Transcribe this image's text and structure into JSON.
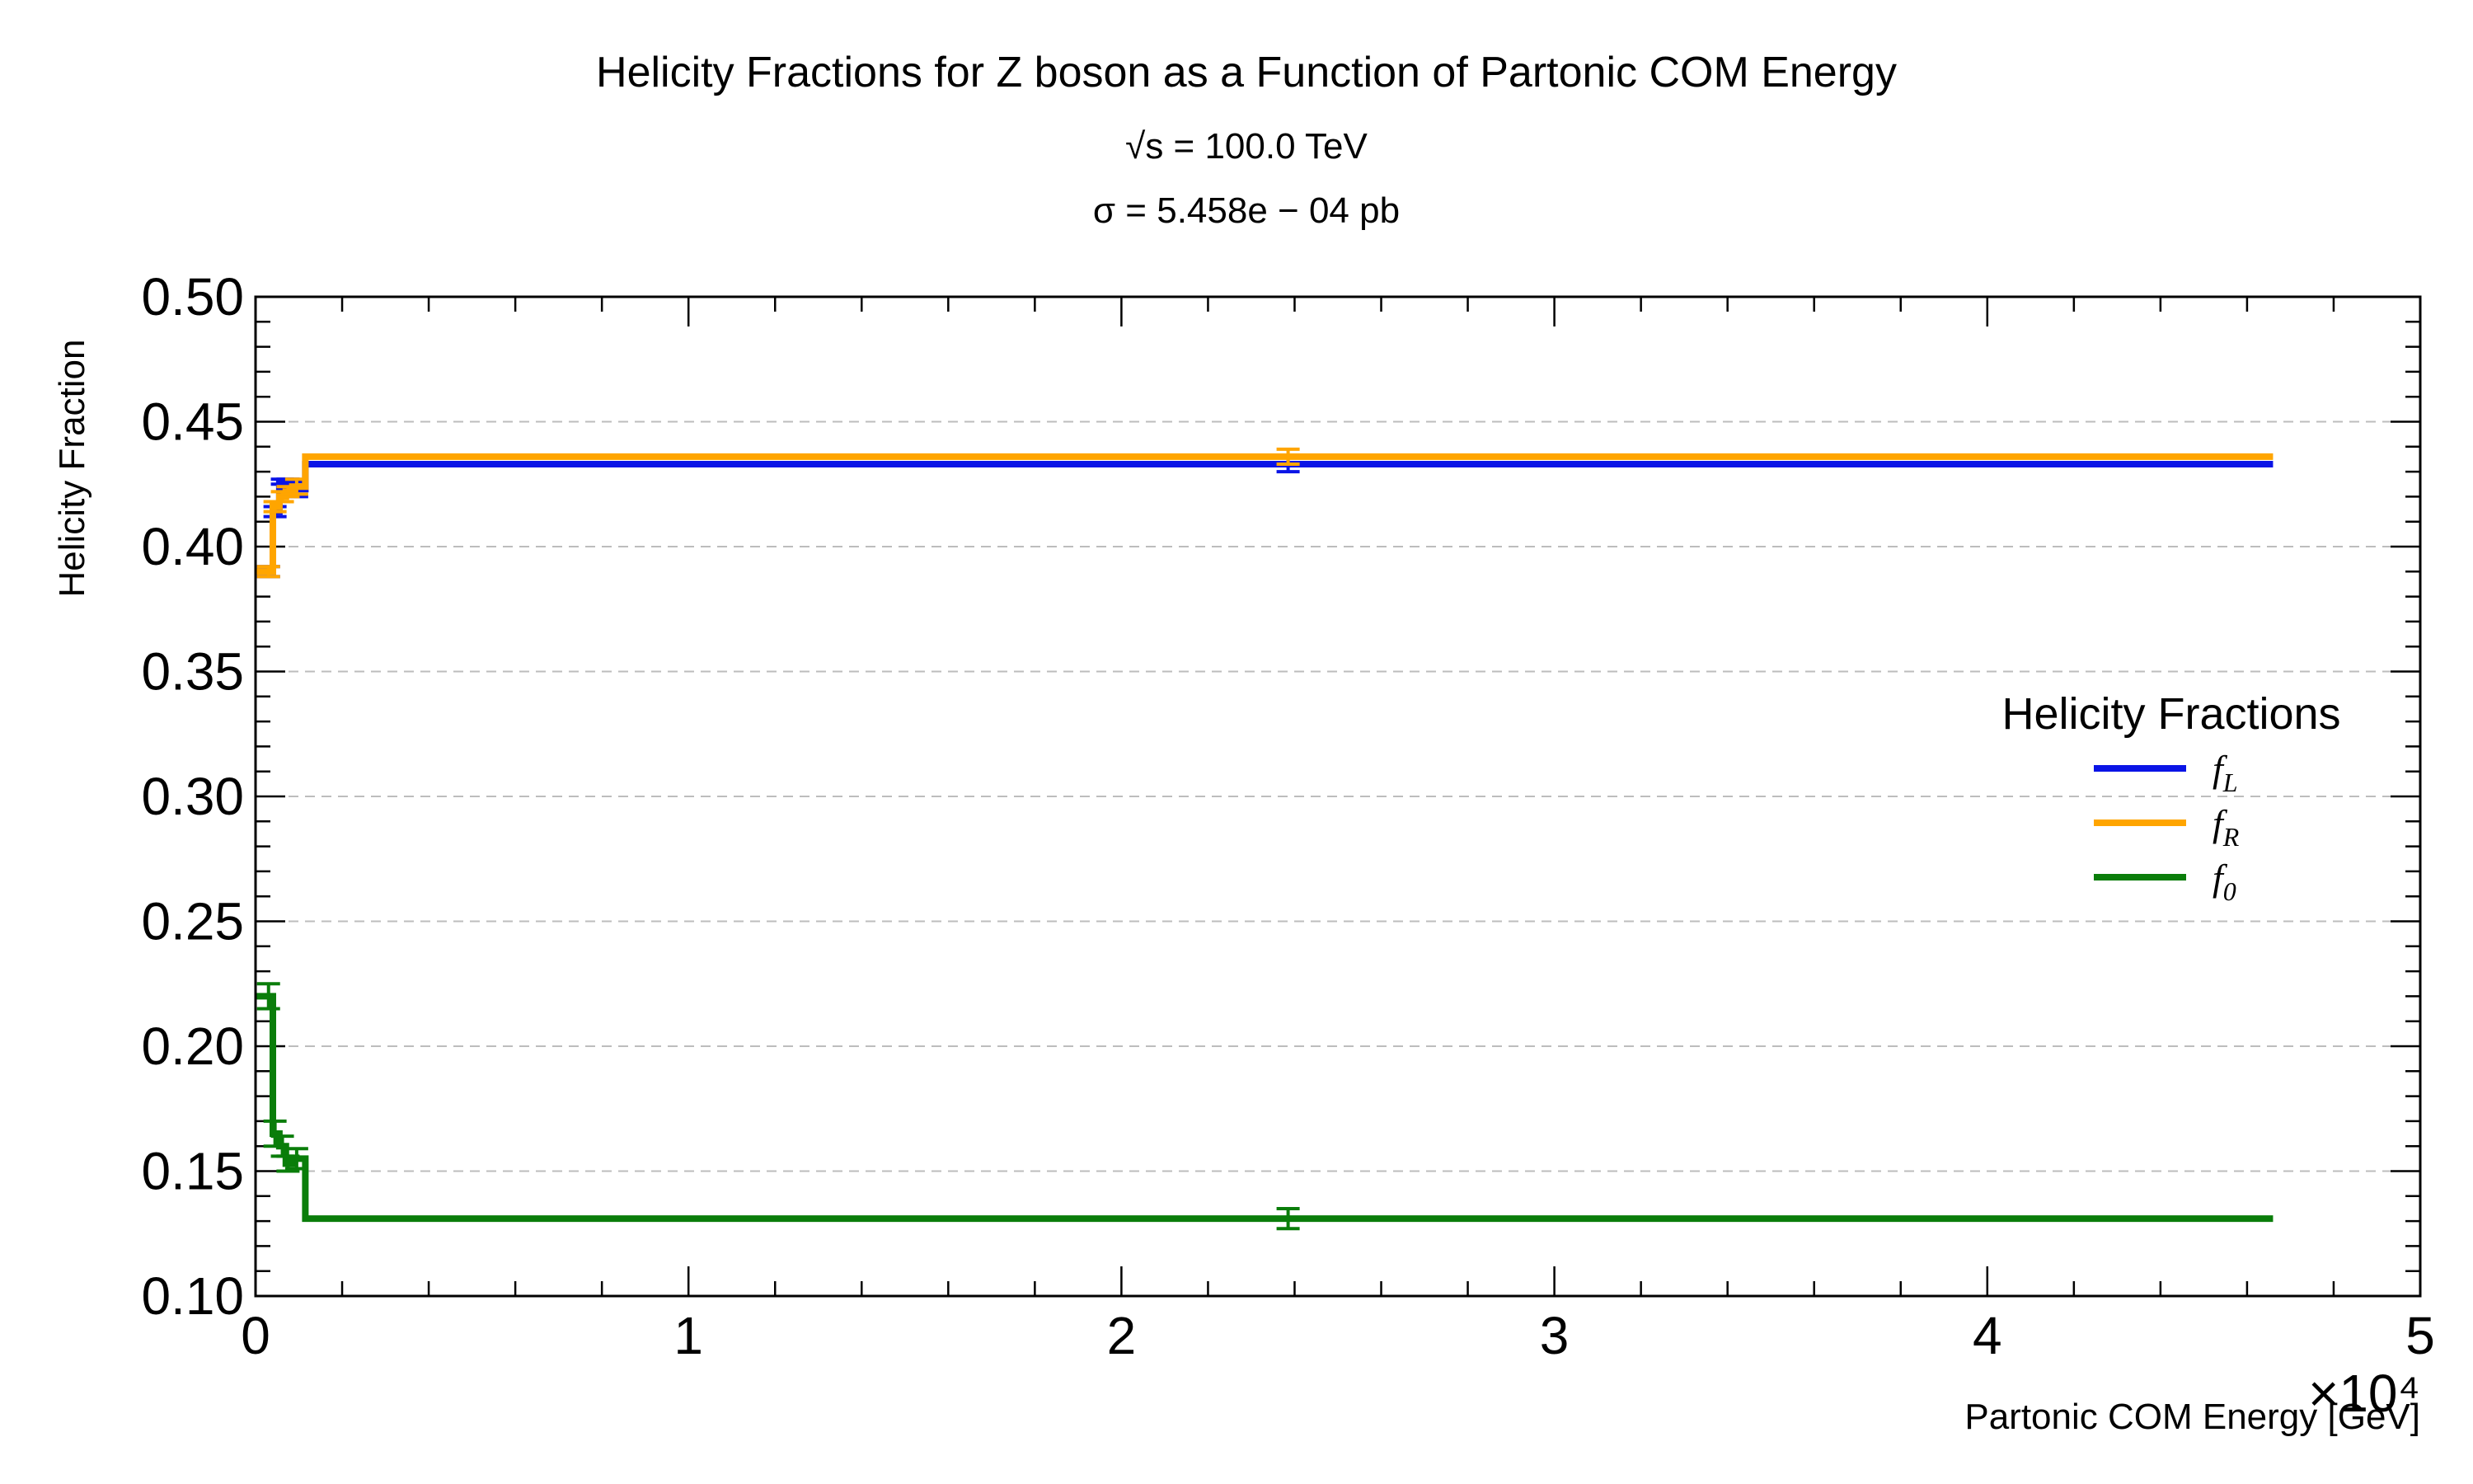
{
  "chart_data": {
    "type": "line",
    "step": true,
    "title": "Helicity Fractions for Z boson as a Function of Partonic COM Energy",
    "subtitles": [
      "√s = 100.0 TeV",
      "σ = 5.458e − 04 pb"
    ],
    "xlabel": "Partonic COM Energy [GeV]",
    "ylabel": "Helicity Fraction",
    "x_offset_label": "×10⁴",
    "xlim": [
      0,
      50000
    ],
    "ylim": [
      0.1,
      0.5
    ],
    "x_ticks": [
      0,
      10000,
      20000,
      30000,
      40000,
      50000
    ],
    "x_tick_labels": [
      "0",
      "1",
      "2",
      "3",
      "4",
      "5"
    ],
    "y_ticks": [
      0.1,
      0.15,
      0.2,
      0.25,
      0.3,
      0.35,
      0.4,
      0.45,
      0.5
    ],
    "y_tick_labels": [
      "0.10",
      "0.15",
      "0.20",
      "0.25",
      "0.30",
      "0.35",
      "0.40",
      "0.45",
      "0.50"
    ],
    "grid": "horizontal",
    "legend_title": "Helicity Fractions",
    "legend_placement": "center-right",
    "bin_edges": [
      0,
      400,
      550,
      700,
      850,
      1150,
      46600
    ],
    "series": [
      {
        "name": "f_L",
        "legend_main": "f",
        "legend_sub": "L",
        "color": "#0a14e6",
        "values": [
          0.39,
          0.414,
          0.426,
          0.425,
          0.423,
          0.433
        ],
        "errors": [
          0.002,
          0.002,
          0.001,
          0.002,
          0.003,
          0.003
        ],
        "error_x": [
          300,
          450,
          620,
          750,
          950,
          23850
        ]
      },
      {
        "name": "f_R",
        "legend_main": "f",
        "legend_sub": "R",
        "color": "#ffa500",
        "values": [
          0.39,
          0.416,
          0.42,
          0.422,
          0.424,
          0.436
        ],
        "errors": [
          0.002,
          0.002,
          0.002,
          0.002,
          0.003,
          0.003
        ],
        "error_x": [
          300,
          450,
          620,
          750,
          950,
          23850
        ]
      },
      {
        "name": "f_0",
        "legend_main": "f",
        "legend_sub": "0",
        "color": "#0a7d0a",
        "values": [
          0.22,
          0.165,
          0.16,
          0.153,
          0.155,
          0.131
        ],
        "errors": [
          0.005,
          0.005,
          0.004,
          0.003,
          0.004,
          0.004
        ],
        "error_x": [
          300,
          450,
          620,
          750,
          950,
          23850
        ]
      }
    ]
  }
}
